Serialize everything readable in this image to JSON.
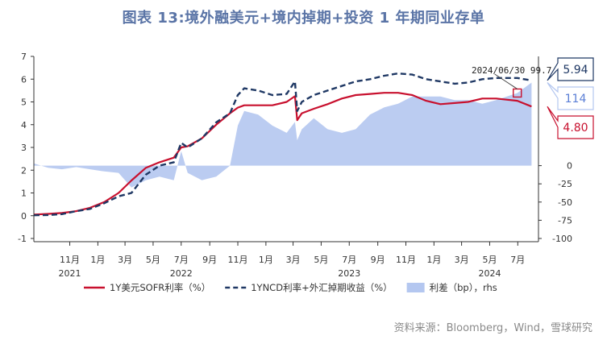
{
  "title": "图表 13:境外融美元+境内掉期+投资 1 年期同业存单",
  "source": "资料来源：Bloomberg，Wind，雪球研究",
  "chart_data": {
    "type": "line",
    "x_range": [
      "2021-08-15",
      "2024-08-15"
    ],
    "x_ticks": [
      {
        "date": "2021-11-01",
        "label": "11月",
        "year": "2021"
      },
      {
        "date": "2022-01-01",
        "label": "1月"
      },
      {
        "date": "2022-03-01",
        "label": "3月"
      },
      {
        "date": "2022-05-01",
        "label": "5月"
      },
      {
        "date": "2022-07-01",
        "label": "7月",
        "year": "2022"
      },
      {
        "date": "2022-09-01",
        "label": "9月"
      },
      {
        "date": "2022-11-01",
        "label": "11月"
      },
      {
        "date": "2023-01-01",
        "label": "1月"
      },
      {
        "date": "2023-03-01",
        "label": "3月"
      },
      {
        "date": "2023-05-01",
        "label": "5月"
      },
      {
        "date": "2023-07-01",
        "label": "7月",
        "year": "2023"
      },
      {
        "date": "2023-09-01",
        "label": "9月"
      },
      {
        "date": "2023-11-01",
        "label": "11月"
      },
      {
        "date": "2024-01-01",
        "label": "1月"
      },
      {
        "date": "2024-03-01",
        "label": "3月"
      },
      {
        "date": "2024-05-01",
        "label": "5月",
        "year": "2024"
      },
      {
        "date": "2024-07-01",
        "label": "7月"
      }
    ],
    "y_left": {
      "min": -1,
      "max": 7,
      "ticks": [
        -1,
        0,
        1,
        2,
        3,
        4,
        5,
        6,
        7
      ]
    },
    "y_right": {
      "min": -100,
      "max": 150,
      "ticks": [
        -100,
        -75,
        -50,
        -25,
        0
      ],
      "tick_labels": [
        "-100",
        "-75",
        "-50",
        "-25",
        "0"
      ]
    },
    "series": [
      {
        "name": "1Y美元SOFR利率（%）",
        "axis": "left",
        "color": "#c8102e",
        "style": "solid",
        "points": [
          [
            "2021-08-15",
            0.05
          ],
          [
            "2021-09-15",
            0.08
          ],
          [
            "2021-10-15",
            0.12
          ],
          [
            "2021-11-15",
            0.2
          ],
          [
            "2021-12-15",
            0.35
          ],
          [
            "2022-01-15",
            0.6
          ],
          [
            "2022-02-15",
            1.0
          ],
          [
            "2022-03-15",
            1.55
          ],
          [
            "2022-04-15",
            2.1
          ],
          [
            "2022-05-15",
            2.35
          ],
          [
            "2022-06-15",
            2.55
          ],
          [
            "2022-07-01",
            3.0
          ],
          [
            "2022-07-15",
            3.05
          ],
          [
            "2022-08-15",
            3.4
          ],
          [
            "2022-09-15",
            4.0
          ],
          [
            "2022-10-15",
            4.5
          ],
          [
            "2022-11-01",
            4.75
          ],
          [
            "2022-11-15",
            4.85
          ],
          [
            "2022-12-15",
            4.85
          ],
          [
            "2023-01-15",
            4.85
          ],
          [
            "2023-02-15",
            5.0
          ],
          [
            "2023-03-05",
            5.25
          ],
          [
            "2023-03-10",
            4.2
          ],
          [
            "2023-03-20",
            4.5
          ],
          [
            "2023-04-15",
            4.7
          ],
          [
            "2023-05-15",
            4.9
          ],
          [
            "2023-06-15",
            5.15
          ],
          [
            "2023-07-15",
            5.3
          ],
          [
            "2023-08-15",
            5.35
          ],
          [
            "2023-09-15",
            5.4
          ],
          [
            "2023-10-15",
            5.4
          ],
          [
            "2023-11-15",
            5.3
          ],
          [
            "2023-12-15",
            5.05
          ],
          [
            "2024-01-15",
            4.9
          ],
          [
            "2024-02-15",
            4.95
          ],
          [
            "2024-03-15",
            5.0
          ],
          [
            "2024-04-15",
            5.15
          ],
          [
            "2024-05-15",
            5.15
          ],
          [
            "2024-06-30",
            5.05
          ],
          [
            "2024-07-31",
            4.8
          ]
        ]
      },
      {
        "name": "1YNCD利率+外汇掉期收益（%）",
        "axis": "left",
        "color": "#1f3864",
        "style": "dashed",
        "points": [
          [
            "2021-08-15",
            0.02
          ],
          [
            "2021-09-15",
            0.03
          ],
          [
            "2021-10-15",
            0.07
          ],
          [
            "2021-11-15",
            0.2
          ],
          [
            "2021-12-15",
            0.3
          ],
          [
            "2022-01-15",
            0.55
          ],
          [
            "2022-02-15",
            0.85
          ],
          [
            "2022-03-15",
            1.0
          ],
          [
            "2022-04-15",
            1.8
          ],
          [
            "2022-05-15",
            2.2
          ],
          [
            "2022-06-15",
            2.35
          ],
          [
            "2022-07-01",
            3.2
          ],
          [
            "2022-07-15",
            3.0
          ],
          [
            "2022-08-15",
            3.4
          ],
          [
            "2022-09-15",
            4.1
          ],
          [
            "2022-10-15",
            4.5
          ],
          [
            "2022-11-01",
            5.3
          ],
          [
            "2022-11-15",
            5.6
          ],
          [
            "2022-12-15",
            5.5
          ],
          [
            "2023-01-15",
            5.3
          ],
          [
            "2023-02-15",
            5.35
          ],
          [
            "2023-03-05",
            5.9
          ],
          [
            "2023-03-10",
            4.6
          ],
          [
            "2023-03-20",
            5.0
          ],
          [
            "2023-04-15",
            5.3
          ],
          [
            "2023-05-15",
            5.5
          ],
          [
            "2023-06-15",
            5.7
          ],
          [
            "2023-07-15",
            5.9
          ],
          [
            "2023-08-15",
            6.0
          ],
          [
            "2023-09-15",
            6.15
          ],
          [
            "2023-10-15",
            6.25
          ],
          [
            "2023-11-15",
            6.2
          ],
          [
            "2023-12-15",
            6.0
          ],
          [
            "2024-01-15",
            5.9
          ],
          [
            "2024-02-15",
            5.8
          ],
          [
            "2024-03-15",
            5.85
          ],
          [
            "2024-04-15",
            6.0
          ],
          [
            "2024-05-15",
            6.05
          ],
          [
            "2024-06-30",
            6.05
          ],
          [
            "2024-07-31",
            5.94
          ]
        ]
      },
      {
        "name": "利差（bp），rhs",
        "axis": "right",
        "color": "#b4c7f0",
        "style": "area",
        "points": [
          [
            "2021-08-15",
            3
          ],
          [
            "2021-09-15",
            -3
          ],
          [
            "2021-10-15",
            -5
          ],
          [
            "2021-11-15",
            -2
          ],
          [
            "2021-12-15",
            -5
          ],
          [
            "2022-01-15",
            -8
          ],
          [
            "2022-02-15",
            -10
          ],
          [
            "2022-03-15",
            -30
          ],
          [
            "2022-04-15",
            -20
          ],
          [
            "2022-05-15",
            -15
          ],
          [
            "2022-06-15",
            -20
          ],
          [
            "2022-07-01",
            20
          ],
          [
            "2022-07-15",
            -10
          ],
          [
            "2022-08-15",
            -20
          ],
          [
            "2022-09-15",
            -15
          ],
          [
            "2022-10-15",
            0
          ],
          [
            "2022-11-01",
            55
          ],
          [
            "2022-11-15",
            75
          ],
          [
            "2022-12-15",
            70
          ],
          [
            "2023-01-15",
            55
          ],
          [
            "2023-02-15",
            45
          ],
          [
            "2023-03-05",
            60
          ],
          [
            "2023-03-10",
            35
          ],
          [
            "2023-03-20",
            50
          ],
          [
            "2023-04-15",
            65
          ],
          [
            "2023-05-15",
            50
          ],
          [
            "2023-06-15",
            45
          ],
          [
            "2023-07-15",
            50
          ],
          [
            "2023-08-15",
            70
          ],
          [
            "2023-09-15",
            80
          ],
          [
            "2023-10-15",
            85
          ],
          [
            "2023-11-15",
            95
          ],
          [
            "2023-12-15",
            95
          ],
          [
            "2024-01-15",
            95
          ],
          [
            "2024-02-15",
            90
          ],
          [
            "2024-03-15",
            90
          ],
          [
            "2024-04-15",
            85
          ],
          [
            "2024-05-15",
            90
          ],
          [
            "2024-06-30",
            99.7
          ],
          [
            "2024-07-31",
            114
          ]
        ]
      }
    ],
    "legend": [
      {
        "label": "1Y美元SOFR利率（%）",
        "style": "solid",
        "color": "#c8102e"
      },
      {
        "label": "1YNCD利率+外汇掉期收益（%）",
        "style": "dashed",
        "color": "#1f3864"
      },
      {
        "label": "利差（bp），rhs",
        "style": "area",
        "color": "#b4c7f0"
      }
    ],
    "annotation": {
      "text": "2024/06/30 99.7",
      "date": "2024-06-30",
      "series": "利差（bp），rhs",
      "value": 99.7
    },
    "callouts": [
      {
        "value": "5.94",
        "axis": "left",
        "y": 5.94,
        "border_color": "#1f3864",
        "text_color": "#1f3864"
      },
      {
        "value": "114",
        "axis": "right",
        "y": 114,
        "border_color": "#b4c7f0",
        "text_color": "#5b7fd6"
      },
      {
        "value": "4.80",
        "axis": "left",
        "y": 4.8,
        "border_color": "#c8102e",
        "text_color": "#c8102e"
      }
    ]
  }
}
